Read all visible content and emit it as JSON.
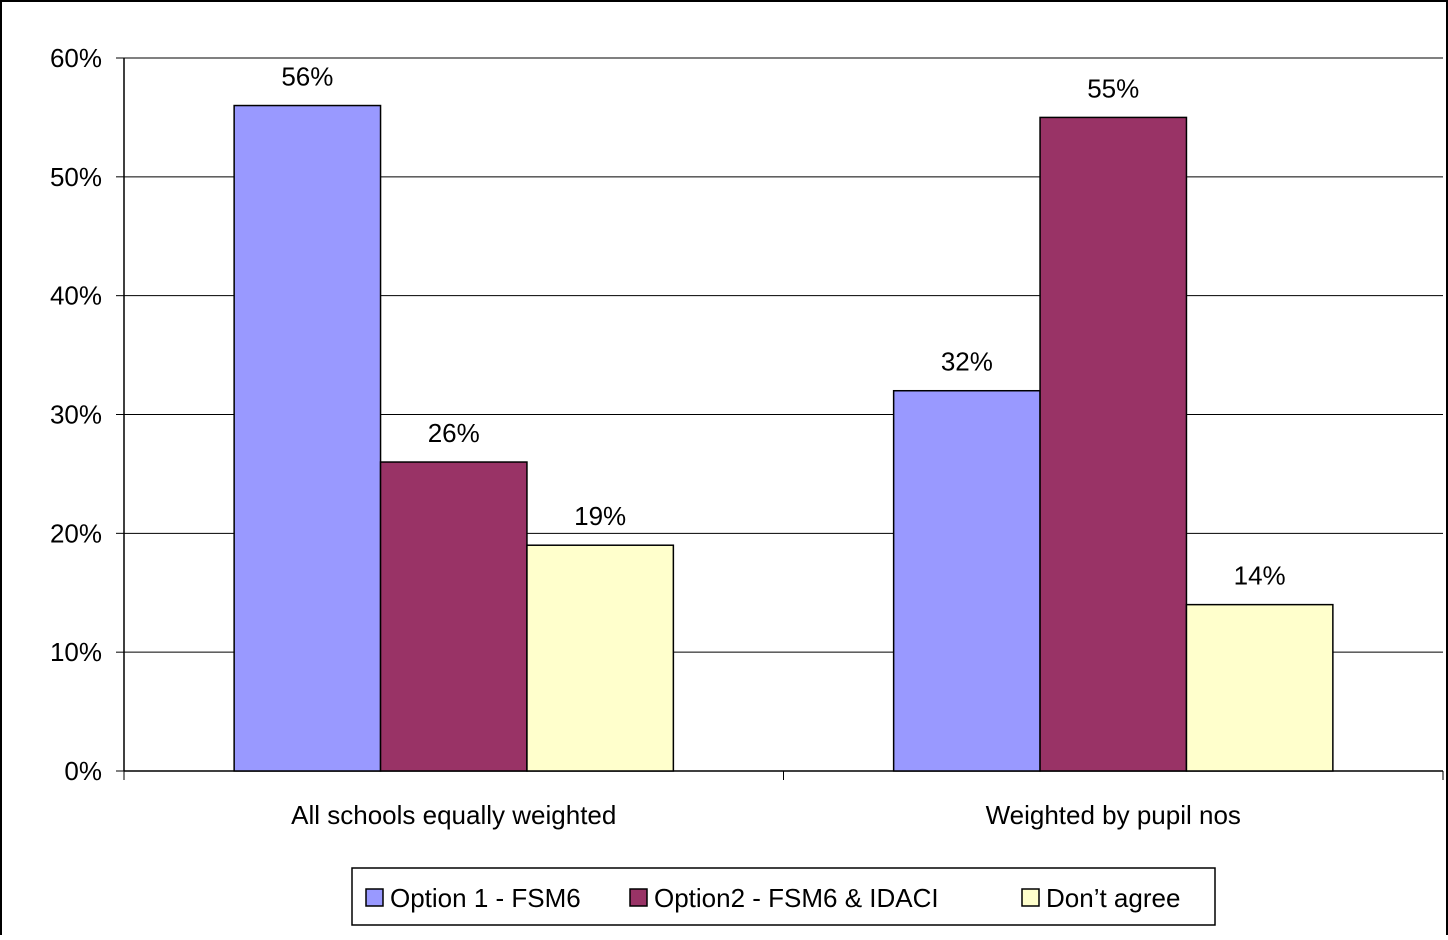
{
  "chart_data": {
    "type": "bar",
    "categories": [
      "All schools equally weighted",
      "Weighted by pupil nos"
    ],
    "series": [
      {
        "name": "Option 1 - FSM6",
        "values": [
          56,
          32
        ],
        "labels": [
          "56%",
          "32%"
        ],
        "color": "#9999FF"
      },
      {
        "name": "Option2 - FSM6 & IDACI",
        "values": [
          26,
          55
        ],
        "labels": [
          "26%",
          "55%"
        ],
        "color": "#993366"
      },
      {
        "name": "Don’t agree",
        "values": [
          19,
          14
        ],
        "labels": [
          "19%",
          "14%"
        ],
        "color": "#FFFFCC"
      }
    ],
    "ylim": [
      0,
      60
    ],
    "yticks": [
      0,
      10,
      20,
      30,
      40,
      50,
      60
    ],
    "ytick_labels": [
      "0%",
      "10%",
      "20%",
      "30%",
      "40%",
      "50%",
      "60%"
    ],
    "grid": true,
    "legend_position": "bottom"
  }
}
